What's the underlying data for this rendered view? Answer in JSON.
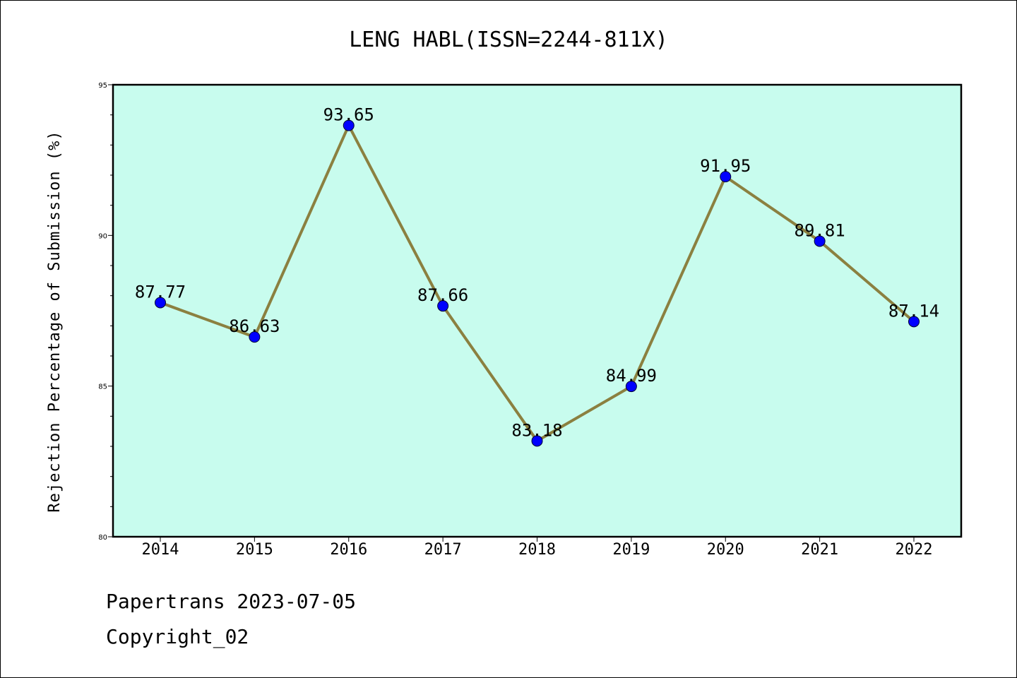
{
  "chart_data": {
    "type": "line",
    "title": "LENG HABL(ISSN=2244-811X)",
    "xlabel": "",
    "ylabel": "Rejection Percentage of Submission (%)",
    "categories": [
      "2014",
      "2015",
      "2016",
      "2017",
      "2018",
      "2019",
      "2020",
      "2021",
      "2022"
    ],
    "values": [
      87.77,
      86.63,
      93.65,
      87.66,
      83.18,
      84.99,
      91.95,
      89.81,
      87.14
    ],
    "data_labels": [
      "87.77",
      "86.63",
      "93.65",
      "87.66",
      "83.18",
      "84.99",
      "91.95",
      "89.81",
      "87.14"
    ],
    "ylim": [
      80,
      95
    ],
    "yticks": [
      "80",
      "85",
      "90",
      "95"
    ],
    "grid": false,
    "colors": {
      "plot_background": "#c8fcee",
      "line": "#8b8040",
      "marker": "#0000ff"
    }
  },
  "footer": {
    "line1": "Papertrans 2023-07-05",
    "line2": "Copyright_02"
  }
}
